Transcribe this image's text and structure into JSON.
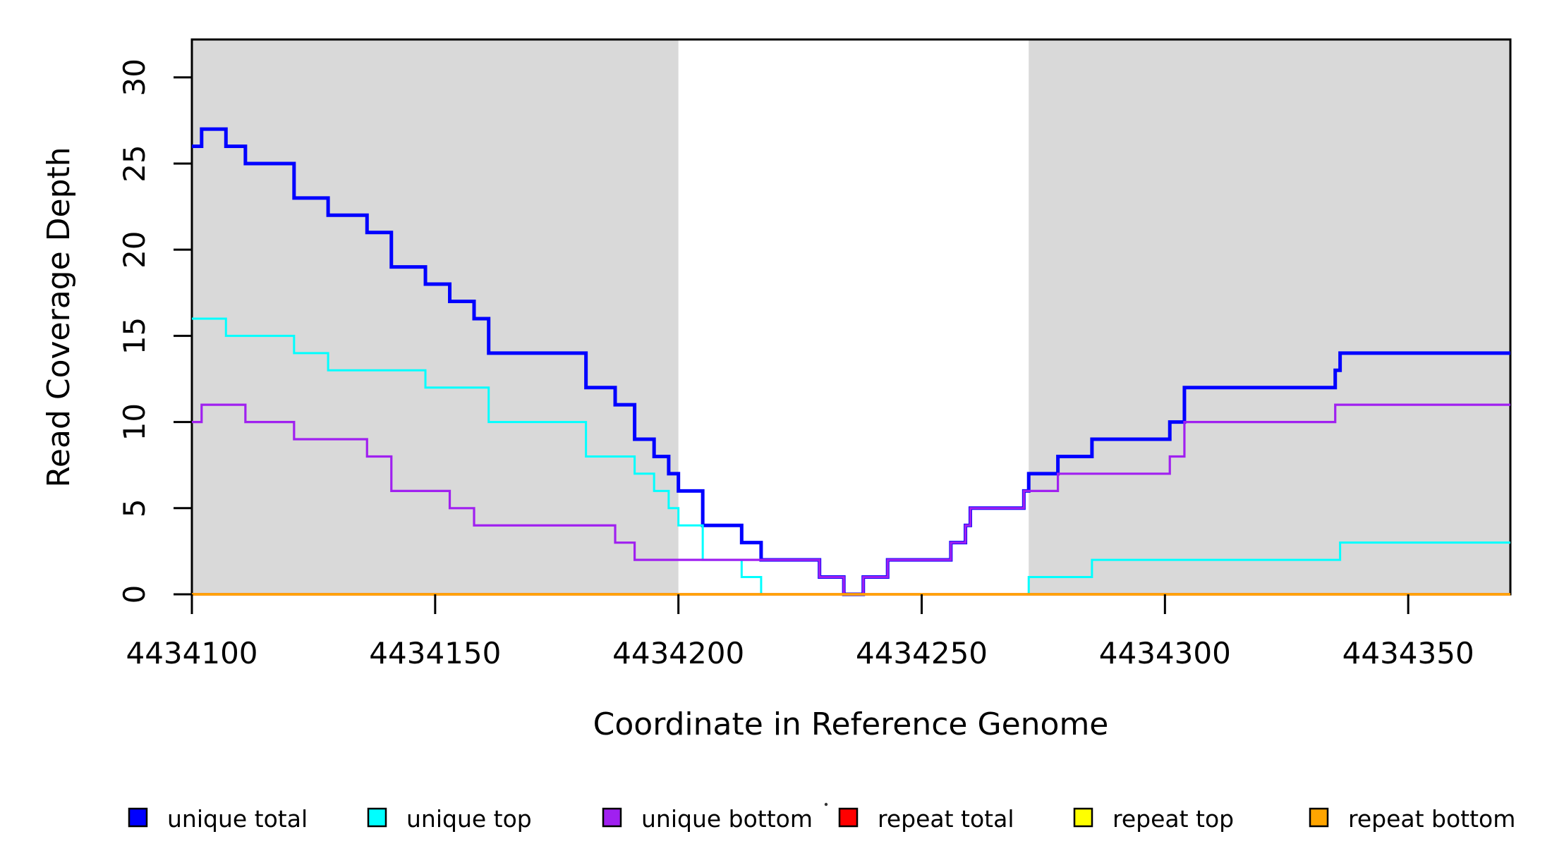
{
  "figure": {
    "background_color": "#ffffff",
    "plot_background_color": "#ffffff",
    "box_color": "#000000"
  },
  "axes": {
    "x_title": "Coordinate in Reference Genome",
    "y_title": "Read Coverage Depth",
    "x_tick_labels": [
      "4434100",
      "4434150",
      "4434200",
      "4434250",
      "4434300",
      "4434350"
    ],
    "y_tick_labels": [
      "0",
      "5",
      "10",
      "15",
      "20",
      "25",
      "30"
    ]
  },
  "legend": {
    "items": [
      {
        "label": "unique total",
        "color": "#0000ff"
      },
      {
        "label": "unique top",
        "color": "#00ffff"
      },
      {
        "label": "unique bottom",
        "color": "#a020f0"
      },
      {
        "label": "repeat total",
        "color": "#ff0000"
      },
      {
        "label": "repeat top",
        "color": "#ffff00"
      },
      {
        "label": "repeat bottom",
        "color": "#ffa500"
      }
    ]
  },
  "chart_data": {
    "type": "line",
    "step_style": "post",
    "title": "",
    "xlabel": "Coordinate in Reference Genome",
    "ylabel": "Read Coverage Depth",
    "xlim": [
      4434100,
      4434371
    ],
    "ylim": [
      0,
      32.2
    ],
    "x_ticks": [
      4434100,
      4434150,
      4434200,
      4434250,
      4434300,
      4434350
    ],
    "y_ticks": [
      0,
      5,
      10,
      15,
      20,
      25,
      30
    ],
    "grid": false,
    "legend_position": "bottom",
    "shaded_regions": [
      {
        "x0": 4434100,
        "x1": 4434200,
        "color": "#d9d9d9"
      },
      {
        "x0": 4434272,
        "x1": 4434371,
        "color": "#d9d9d9"
      }
    ],
    "step_end_x": 4434371,
    "series": [
      {
        "name": "unique total",
        "color": "#0000ff",
        "steps": [
          [
            4434100,
            26
          ],
          [
            4434102,
            27
          ],
          [
            4434107,
            26
          ],
          [
            4434111,
            25
          ],
          [
            4434121,
            23
          ],
          [
            4434128,
            22
          ],
          [
            4434136,
            21
          ],
          [
            4434141,
            19
          ],
          [
            4434148,
            18
          ],
          [
            4434153,
            17
          ],
          [
            4434158,
            16
          ],
          [
            4434161,
            14
          ],
          [
            4434181,
            12
          ],
          [
            4434187,
            11
          ],
          [
            4434191,
            9
          ],
          [
            4434195,
            8
          ],
          [
            4434198,
            7
          ],
          [
            4434200,
            6
          ],
          [
            4434205,
            4
          ],
          [
            4434213,
            3
          ],
          [
            4434217,
            2
          ],
          [
            4434229,
            1
          ],
          [
            4434234,
            0
          ],
          [
            4434238,
            1
          ],
          [
            4434243,
            2
          ],
          [
            4434256,
            3
          ],
          [
            4434259,
            4
          ],
          [
            4434260,
            5
          ],
          [
            4434271,
            6
          ],
          [
            4434272,
            7
          ],
          [
            4434278,
            8
          ],
          [
            4434285,
            9
          ],
          [
            4434301,
            10
          ],
          [
            4434304,
            12
          ],
          [
            4434335,
            13
          ],
          [
            4434336,
            14
          ]
        ]
      },
      {
        "name": "unique top",
        "color": "#00ffff",
        "steps": [
          [
            4434100,
            16
          ],
          [
            4434107,
            15
          ],
          [
            4434121,
            14
          ],
          [
            4434128,
            13
          ],
          [
            4434148,
            12
          ],
          [
            4434161,
            10
          ],
          [
            4434181,
            8
          ],
          [
            4434191,
            7
          ],
          [
            4434195,
            6
          ],
          [
            4434198,
            5
          ],
          [
            4434200,
            4
          ],
          [
            4434205,
            2
          ],
          [
            4434213,
            1
          ],
          [
            4434217,
            0
          ],
          [
            4434272,
            1
          ],
          [
            4434285,
            2
          ],
          [
            4434336,
            3
          ]
        ]
      },
      {
        "name": "unique bottom",
        "color": "#a020f0",
        "steps": [
          [
            4434100,
            10
          ],
          [
            4434102,
            11
          ],
          [
            4434111,
            10
          ],
          [
            4434121,
            9
          ],
          [
            4434136,
            8
          ],
          [
            4434141,
            6
          ],
          [
            4434153,
            5
          ],
          [
            4434158,
            4
          ],
          [
            4434187,
            3
          ],
          [
            4434191,
            2
          ],
          [
            4434229,
            1
          ],
          [
            4434234,
            0
          ],
          [
            4434238,
            1
          ],
          [
            4434243,
            2
          ],
          [
            4434256,
            3
          ],
          [
            4434259,
            4
          ],
          [
            4434260,
            5
          ],
          [
            4434271,
            6
          ],
          [
            4434278,
            7
          ],
          [
            4434301,
            8
          ],
          [
            4434304,
            10
          ],
          [
            4434335,
            11
          ]
        ]
      },
      {
        "name": "repeat total",
        "color": "#ff0000",
        "steps": [
          [
            4434100,
            0
          ]
        ]
      },
      {
        "name": "repeat top",
        "color": "#ffff00",
        "steps": [
          [
            4434100,
            0
          ]
        ]
      },
      {
        "name": "repeat bottom",
        "color": "#ffa500",
        "steps": [
          [
            4434100,
            0
          ]
        ]
      }
    ]
  }
}
